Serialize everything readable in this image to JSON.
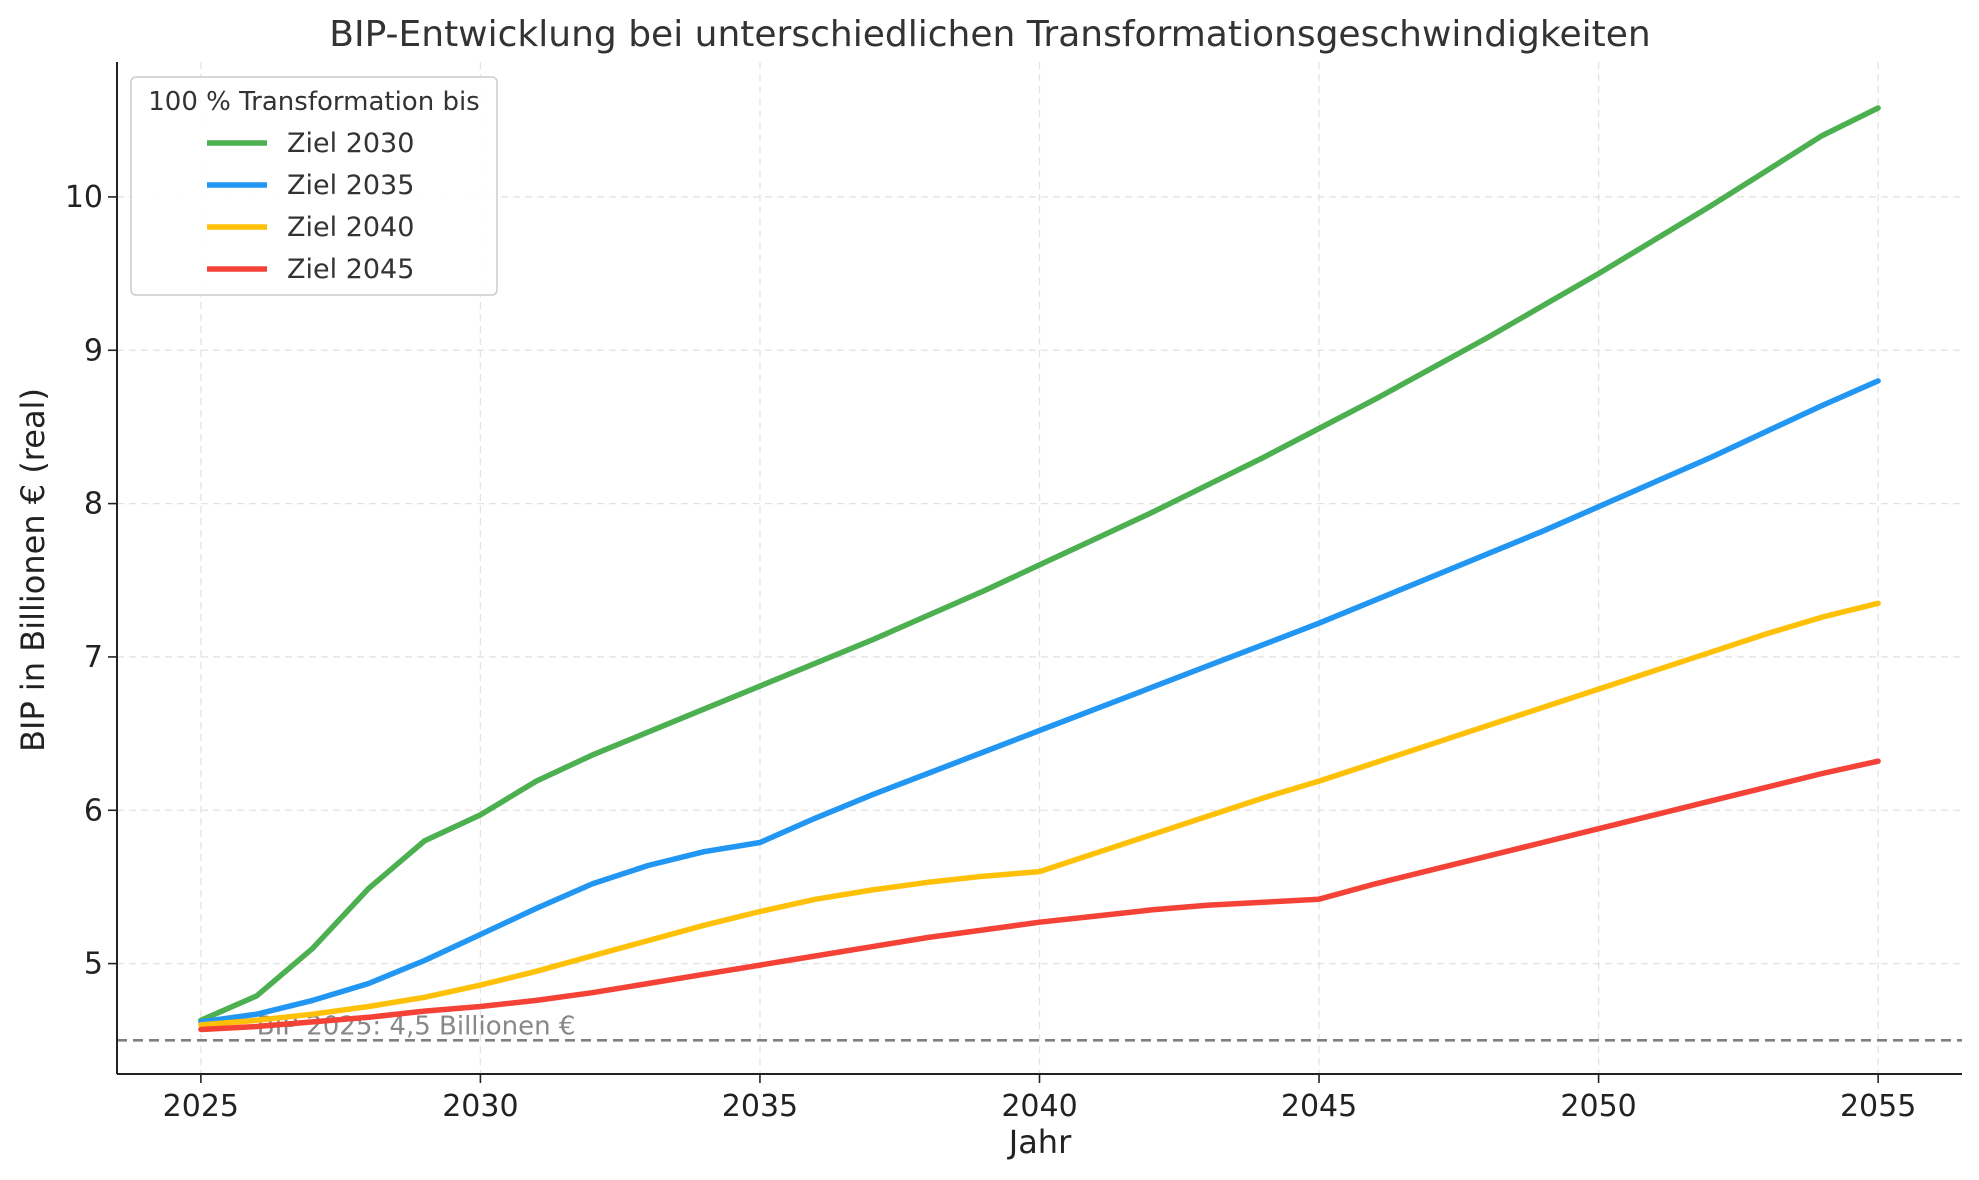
{
  "chart_data": {
    "type": "line",
    "title": "BIP-Entwicklung bei unterschiedlichen Transformationsgeschwindigkeiten",
    "xlabel": "Jahr",
    "ylabel": "BIP in Billionen € (real)",
    "xlim": [
      2023.5,
      2056.5
    ],
    "ylim": [
      4.28,
      10.88
    ],
    "xticks": [
      2025,
      2030,
      2035,
      2040,
      2045,
      2050,
      2055
    ],
    "yticks": [
      5,
      6,
      7,
      8,
      9,
      10
    ],
    "grid": true,
    "legend": {
      "title": "100 % Transformation bis",
      "placement": "top-left"
    },
    "reference_line": {
      "y": 4.5,
      "label": "BIP 2025: 4,5 Billionen €",
      "color": "#808080"
    },
    "x": [
      2025,
      2026,
      2027,
      2028,
      2029,
      2030,
      2031,
      2032,
      2033,
      2034,
      2035,
      2036,
      2037,
      2038,
      2039,
      2040,
      2041,
      2042,
      2043,
      2044,
      2045,
      2046,
      2047,
      2048,
      2049,
      2050,
      2051,
      2052,
      2053,
      2054,
      2055
    ],
    "series": [
      {
        "name": "Ziel 2030",
        "color": "#4CAF50",
        "values": [
          4.63,
          4.79,
          5.1,
          5.49,
          5.8,
          5.97,
          6.19,
          6.36,
          6.51,
          6.66,
          6.81,
          6.96,
          7.11,
          7.27,
          7.43,
          7.6,
          7.77,
          7.94,
          8.12,
          8.3,
          8.49,
          8.68,
          8.88,
          9.08,
          9.29,
          9.5,
          9.72,
          9.94,
          10.17,
          10.4,
          10.58
        ]
      },
      {
        "name": "Ziel 2035",
        "color": "#2196F3",
        "values": [
          4.62,
          4.67,
          4.76,
          4.87,
          5.02,
          5.19,
          5.36,
          5.52,
          5.64,
          5.73,
          5.79,
          5.95,
          6.1,
          6.24,
          6.38,
          6.52,
          6.66,
          6.8,
          6.94,
          7.08,
          7.22,
          7.37,
          7.52,
          7.67,
          7.82,
          7.98,
          8.14,
          8.3,
          8.47,
          8.64,
          8.8
        ]
      },
      {
        "name": "Ziel 2040",
        "color": "#FFC107",
        "values": [
          4.6,
          4.63,
          4.67,
          4.72,
          4.78,
          4.86,
          4.95,
          5.05,
          5.15,
          5.25,
          5.34,
          5.42,
          5.48,
          5.53,
          5.57,
          5.6,
          5.72,
          5.84,
          5.96,
          6.08,
          6.19,
          6.31,
          6.43,
          6.55,
          6.67,
          6.79,
          6.91,
          7.03,
          7.15,
          7.26,
          7.35
        ]
      },
      {
        "name": "Ziel 2045",
        "color": "#F44336",
        "values": [
          4.57,
          4.59,
          4.62,
          4.65,
          4.69,
          4.72,
          4.76,
          4.81,
          4.87,
          4.93,
          4.99,
          5.05,
          5.11,
          5.17,
          5.22,
          5.27,
          5.31,
          5.35,
          5.38,
          5.4,
          5.42,
          5.52,
          5.61,
          5.7,
          5.79,
          5.88,
          5.97,
          6.06,
          6.15,
          6.24,
          6.32
        ]
      }
    ]
  }
}
